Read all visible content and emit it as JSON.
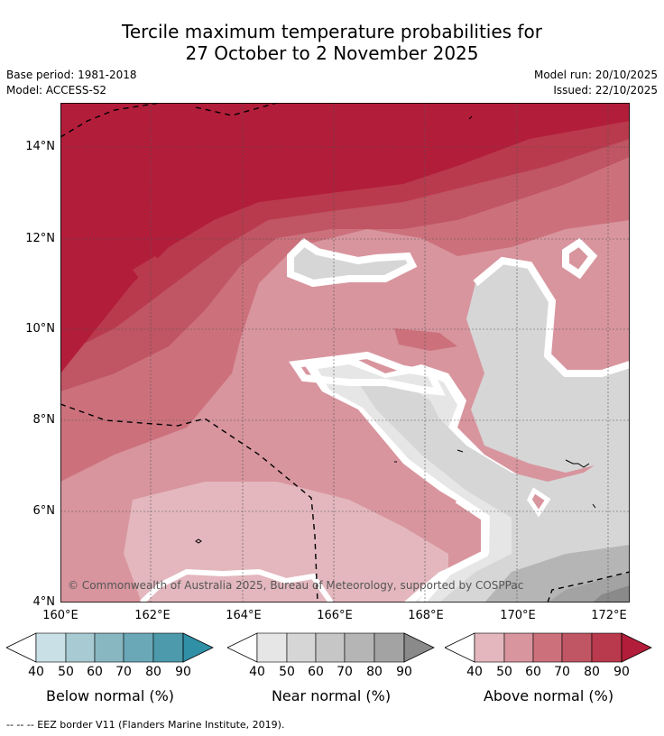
{
  "title_line1": "Tercile maximum temperature probabilities for",
  "title_line2": "27 October to 2 November 2025",
  "base_period": "Base period: 1981-2018",
  "model": "Model: ACCESS-S2",
  "model_run": "Model run: 20/10/2025",
  "issued": "Issued: 22/10/2025",
  "map": {
    "lat_ticks": [
      "14°N",
      "12°N",
      "10°N",
      "8°N",
      "6°N",
      "4°N"
    ],
    "lon_ticks": [
      "160°E",
      "162°E",
      "164°E",
      "166°E",
      "168°E",
      "170°E",
      "172°E"
    ],
    "copyright": "© Commonwealth of Australia 2025, Bureau of Meteorology, supported by COSPPac"
  },
  "colorbars": [
    {
      "title": "Below normal (%)",
      "ticks": [
        "40",
        "50",
        "60",
        "70",
        "80",
        "90"
      ],
      "colors": [
        "#c9e0e6",
        "#a8cad2",
        "#88b7c2",
        "#6aa8b7",
        "#4c9aac",
        "#2f90a6"
      ]
    },
    {
      "title": "Near normal (%)",
      "ticks": [
        "40",
        "50",
        "60",
        "70",
        "80",
        "90"
      ],
      "colors": [
        "#e6e6e6",
        "#d6d6d6",
        "#c6c6c6",
        "#b5b5b5",
        "#a3a3a3",
        "#8a8a8a"
      ]
    },
    {
      "title": "Above normal (%)",
      "ticks": [
        "40",
        "50",
        "60",
        "70",
        "80",
        "90"
      ],
      "colors": [
        "#e3b7bd",
        "#d8959e",
        "#cc717c",
        "#c05563",
        "#b93a4c",
        "#b21d3a"
      ]
    }
  ],
  "footer": "--  --  -- EEZ border V11 (Flanders Marine Institute, 2019)."
}
